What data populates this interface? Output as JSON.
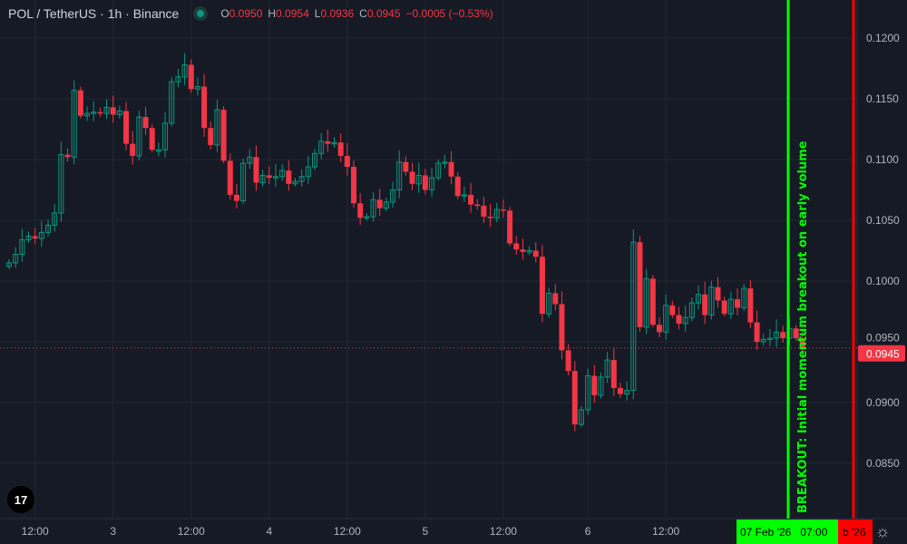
{
  "header": {
    "title": "POL / TetherUS · 1h · Binance",
    "status_icon": "market-open-dot",
    "ohlc": [
      {
        "key": "O",
        "value": "0.0950"
      },
      {
        "key": "H",
        "value": "0.0954"
      },
      {
        "key": "L",
        "value": "0.0936"
      },
      {
        "key": "C",
        "value": "0.0945"
      }
    ],
    "change": "−0.0005 (−0.53%)"
  },
  "colors": {
    "up": "#089981",
    "down": "#f23645",
    "marker_green": "#00ff00",
    "marker_red": "#ff0000",
    "background": "#161a25"
  },
  "chart_data": {
    "type": "candlestick",
    "ylim": [
      0.0805,
      0.123
    ],
    "y_ticks": [
      "0.1200",
      "0.1150",
      "0.1100",
      "0.1050",
      "0.1000",
      "0.0950",
      "0.0900",
      "0.0850"
    ],
    "x_ticks": [
      {
        "label": "12:00",
        "index": 4
      },
      {
        "label": "3",
        "index": 16
      },
      {
        "label": "12:00",
        "index": 28
      },
      {
        "label": "4",
        "index": 40
      },
      {
        "label": "12:00",
        "index": 52
      },
      {
        "label": "5",
        "index": 64
      },
      {
        "label": "12:00",
        "index": 76
      },
      {
        "label": "6",
        "index": 89
      },
      {
        "label": "12:00",
        "index": 101
      }
    ],
    "first_open": 0.1012,
    "closes": [
      0.1015,
      0.1022,
      0.1034,
      0.1037,
      0.1035,
      0.104,
      0.1046,
      0.1056,
      0.1104,
      0.1102,
      0.1157,
      0.1136,
      0.1138,
      0.1139,
      0.1138,
      0.1143,
      0.1137,
      0.114,
      0.1113,
      0.1103,
      0.1135,
      0.1126,
      0.1108,
      0.1108,
      0.113,
      0.1164,
      0.1168,
      0.1178,
      0.1158,
      0.116,
      0.1126,
      0.1112,
      0.1141,
      0.1099,
      0.1071,
      0.1066,
      0.1097,
      0.1102,
      0.1081,
      0.1087,
      0.1085,
      0.1086,
      0.1091,
      0.108,
      0.1082,
      0.1086,
      0.1094,
      0.1105,
      0.1115,
      0.1113,
      0.1114,
      0.1103,
      0.1094,
      0.1064,
      0.1052,
      0.1053,
      0.1067,
      0.106,
      0.1065,
      0.1075,
      0.1098,
      0.109,
      0.108,
      0.1087,
      0.1075,
      0.1085,
      0.1097,
      0.1098,
      0.1086,
      0.107,
      0.1071,
      0.1063,
      0.1062,
      0.1053,
      0.1052,
      0.1059,
      0.1058,
      0.1031,
      0.1026,
      0.1024,
      0.1025,
      0.102,
      0.0973,
      0.099,
      0.0981,
      0.0943,
      0.0926,
      0.0882,
      0.0894,
      0.0922,
      0.0906,
      0.0921,
      0.0935,
      0.0912,
      0.0907,
      0.091,
      0.1032,
      0.0962,
      0.1002,
      0.0964,
      0.0958,
      0.098,
      0.0972,
      0.0965,
      0.097,
      0.0982,
      0.0989,
      0.0972,
      0.0995,
      0.0984,
      0.0973,
      0.0985,
      0.0978,
      0.0994,
      0.0966,
      0.095,
      0.0952,
      0.0953,
      0.0958,
      0.0953,
      0.0961,
      0.0953,
      0.0945
    ],
    "last_price": "0.0945",
    "markers": [
      {
        "type": "vertical-line",
        "color": "#00ff00",
        "index": 123,
        "time_label": "07 Feb '26   07:00",
        "annotation": "BREAKOUT: Initial momentum breakout on early volume"
      },
      {
        "type": "vertical-line",
        "color": "#ff0000",
        "index": 133,
        "time_label": "b '26"
      }
    ]
  },
  "footer": {
    "settings_icon": "gear-icon",
    "logo": "TradingView"
  }
}
